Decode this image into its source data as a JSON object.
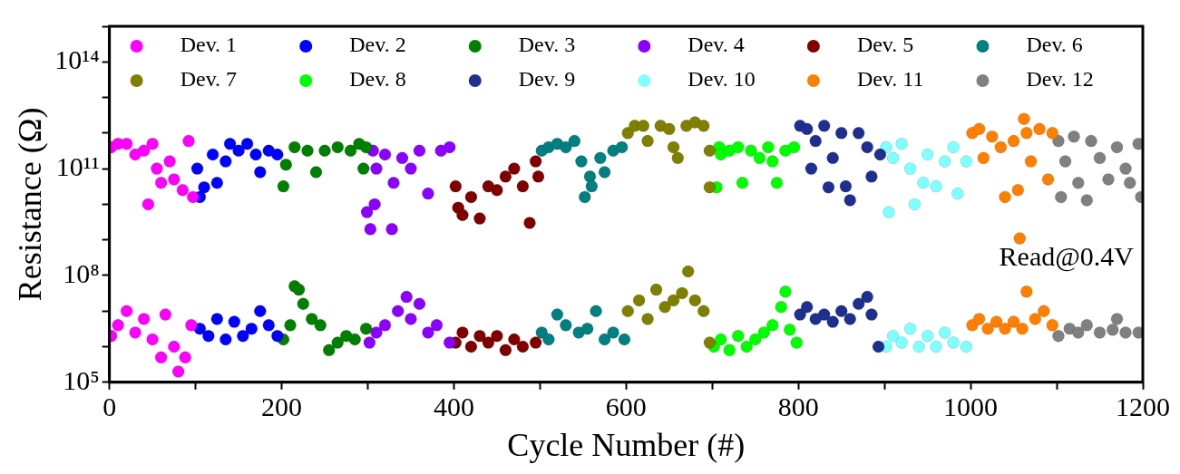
{
  "chart_data": {
    "type": "scatter",
    "xlabel": "Cycle Number (#)",
    "ylabel": "Resistance (Ω)",
    "annotations": [
      "Read@0.4V"
    ],
    "log": "y",
    "grid": false,
    "legend": "top",
    "marker": "circle",
    "xlim": [
      0,
      1200
    ],
    "xticks": [
      0,
      {
        "value": 100,
        "label": null
      },
      200,
      {
        "value": 300,
        "label": null
      },
      400,
      {
        "value": 500,
        "label": null
      },
      600,
      {
        "value": 700,
        "label": null
      },
      800,
      {
        "value": 900,
        "label": null
      },
      1000,
      {
        "value": 1100,
        "label": null
      },
      1200
    ],
    "ylim": [
      100000,
      1000000000000000
    ],
    "yticks": [
      {
        "value": 100000,
        "label": "10⁵"
      },
      {
        "value": 1000000,
        "label": null
      },
      {
        "value": 10000000,
        "label": null
      },
      {
        "value": 100000000,
        "label": "10⁸"
      },
      {
        "value": 1000000000,
        "label": null
      },
      {
        "value": 10000000000,
        "label": null
      },
      {
        "value": 100000000000,
        "label": "10¹¹"
      },
      {
        "value": 1000000000000,
        "label": null
      },
      {
        "value": 10000000000000,
        "label": null
      },
      {
        "value": 100000000000000,
        "label": "10¹⁴"
      },
      {
        "value": 1000000000000000,
        "label": null
      }
    ],
    "series": [
      {
        "name": "Dev. 1",
        "color": "#ff00ff",
        "x": [
          2,
          10,
          20,
          30,
          40,
          45,
          50,
          55,
          60,
          70,
          75,
          85,
          92,
          97,
          2,
          10,
          20,
          30,
          40,
          50,
          60,
          65,
          75,
          80,
          88,
          95
        ],
        "values": [
          400000000000.0,
          500000000000.0,
          500000000000.0,
          250000000000.0,
          320000000000.0,
          10000000000.0,
          500000000000.0,
          100000000000.0,
          40000000000.0,
          160000000000.0,
          50000000000.0,
          25000000000.0,
          600000000000.0,
          16000000000.0,
          2000000.0,
          4000000.0,
          10000000.0,
          2500000.0,
          6000000.0,
          1600000.0,
          500000.0,
          8000000.0,
          1000000.0,
          200000.0,
          500000.0,
          4000000.0
        ]
      },
      {
        "name": "Dev. 2",
        "color": "#0000ff",
        "x": [
          102,
          105,
          110,
          120,
          125,
          135,
          140,
          150,
          160,
          170,
          175,
          185,
          195,
          105,
          115,
          125,
          135,
          145,
          155,
          165,
          175,
          185,
          195
        ],
        "values": [
          100000000000.0,
          16000000000.0,
          30000000000.0,
          250000000000.0,
          40000000000.0,
          160000000000.0,
          500000000000.0,
          320000000000.0,
          500000000000.0,
          250000000000.0,
          80000000000.0,
          320000000000.0,
          250000000000.0,
          3200000.0,
          2000000.0,
          6000000.0,
          1600000.0,
          5000000.0,
          2000000.0,
          3200000.0,
          10000000.0,
          4000000.0,
          2000000.0
        ]
      },
      {
        "name": "Dev. 3",
        "color": "#008000",
        "x": [
          202,
          205,
          215,
          230,
          240,
          250,
          265,
          280,
          290,
          295,
          298,
          202,
          210,
          215,
          220,
          225,
          235,
          245,
          255,
          265,
          275,
          285,
          298
        ],
        "values": [
          32000000000.0,
          130000000000.0,
          400000000000.0,
          320000000000.0,
          80000000000.0,
          320000000000.0,
          400000000000.0,
          320000000000.0,
          500000000000.0,
          100000000000.0,
          400000000000.0,
          1600000.0,
          4000000.0,
          50000000.0,
          40000000.0,
          16000000.0,
          6000000.0,
          4000000.0,
          800000.0,
          1300000.0,
          2000000.0,
          1600000.0,
          3200000.0
        ]
      },
      {
        "name": "Dev. 4",
        "color": "#8b00ff",
        "x": [
          306,
          303,
          299,
          308,
          310,
          320,
          328,
          330,
          340,
          350,
          360,
          370,
          385,
          395,
          302,
          310,
          320,
          335,
          345,
          350,
          360,
          370,
          380,
          395
        ],
        "values": [
          320000000000.0,
          2000000000.0,
          6000000000.0,
          10000000000.0,
          100000000000.0,
          250000000000.0,
          2000000000.0,
          40000000000.0,
          200000000000.0,
          100000000000.0,
          320000000000.0,
          20000000000.0,
          320000000000.0,
          400000000000.0,
          1300000.0,
          2500000.0,
          4000000.0,
          10000000.0,
          25000000.0,
          6000000.0,
          16000000.0,
          2500000.0,
          4000000.0,
          1300000.0
        ]
      },
      {
        "name": "Dev. 5",
        "color": "#800000",
        "x": [
          402,
          405,
          410,
          420,
          430,
          440,
          450,
          460,
          470,
          480,
          488,
          495,
          498,
          402,
          410,
          420,
          430,
          440,
          450,
          460,
          470,
          480,
          495
        ],
        "values": [
          32000000000.0,
          8000000000.0,
          5000000000.0,
          16000000000.0,
          4000000000.0,
          32000000000.0,
          25000000000.0,
          60000000000.0,
          100000000000.0,
          32000000000.0,
          3000000000.0,
          160000000000.0,
          60000000000.0,
          1300000.0,
          2500000.0,
          1000000.0,
          2000000.0,
          1300000.0,
          2000000.0,
          800000.0,
          1600000.0,
          1000000.0,
          1300000.0
        ]
      },
      {
        "name": "Dev. 6",
        "color": "#008080",
        "x": [
          502,
          510,
          520,
          530,
          540,
          548,
          552,
          558,
          560,
          570,
          575,
          585,
          595,
          502,
          510,
          520,
          530,
          545,
          555,
          565,
          575,
          585,
          598
        ],
        "values": [
          320000000000.0,
          400000000000.0,
          500000000000.0,
          400000000000.0,
          600000000000.0,
          160000000000.0,
          16000000000.0,
          60000000000.0,
          32000000000.0,
          200000000000.0,
          80000000000.0,
          320000000000.0,
          400000000000.0,
          2500000.0,
          1600000.0,
          8000000.0,
          4000000.0,
          2500000.0,
          3200000.0,
          10000000.0,
          1600000.0,
          2500000.0,
          1600000.0
        ]
      },
      {
        "name": "Dev. 7",
        "color": "#808000",
        "x": [
          602,
          610,
          620,
          625,
          640,
          650,
          655,
          660,
          670,
          680,
          690,
          697,
          697,
          602,
          615,
          625,
          635,
          645,
          655,
          665,
          672,
          680,
          690,
          697
        ],
        "values": [
          1000000000000.0,
          1600000000000.0,
          1600000000000.0,
          600000000000.0,
          1600000000000.0,
          1300000000000.0,
          400000000000.0,
          200000000000.0,
          1600000000000.0,
          2000000000000.0,
          1600000000000.0,
          320000000000.0,
          30000000000.0,
          10000000.0,
          20000000.0,
          6000000.0,
          40000000.0,
          13000000.0,
          20000000.0,
          32000000.0,
          130000000.0,
          20000000.0,
          10000000.0,
          1300000.0
        ]
      },
      {
        "name": "Dev. 8",
        "color": "#00ff00",
        "x": [
          708,
          705,
          710,
          720,
          730,
          735,
          745,
          755,
          765,
          770,
          775,
          785,
          795,
          702,
          710,
          720,
          730,
          740,
          750,
          760,
          770,
          780,
          785,
          790,
          798
        ],
        "values": [
          400000000000.0,
          30000000000.0,
          250000000000.0,
          320000000000.0,
          400000000000.0,
          40000000000.0,
          320000000000.0,
          200000000000.0,
          400000000000.0,
          160000000000.0,
          40000000000.0,
          320000000000.0,
          400000000000.0,
          1000000.0,
          1600000.0,
          800000.0,
          2000000.0,
          1000000.0,
          1600000.0,
          2500000.0,
          4000000.0,
          13000000.0,
          35000000.0,
          3000000.0,
          1300000.0
        ]
      },
      {
        "name": "Dev. 9",
        "color": "#1f2f8f",
        "x": [
          802,
          810,
          815,
          820,
          830,
          835,
          840,
          850,
          855,
          860,
          870,
          880,
          885,
          895,
          802,
          810,
          820,
          830,
          840,
          850,
          860,
          870,
          880,
          885,
          893
        ],
        "values": [
          1600000000000.0,
          1300000000000.0,
          100000000000.0,
          600000000000.0,
          1600000000000.0,
          30000000000.0,
          200000000000.0,
          1000000000000.0,
          32000000000.0,
          13000000000.0,
          1000000000000.0,
          400000000000.0,
          60000000000.0,
          250000000000.0,
          8000000.0,
          13000000.0,
          6000000.0,
          8000000.0,
          5000000.0,
          10000000.0,
          6000000.0,
          16000000.0,
          25000000.0,
          8000000.0,
          1000000.0
        ]
      },
      {
        "name": "Dev. 10",
        "color": "#80ffff",
        "x": [
          902,
          905,
          910,
          920,
          930,
          935,
          945,
          950,
          960,
          970,
          980,
          985,
          995,
          902,
          910,
          920,
          930,
          940,
          950,
          960,
          970,
          980,
          995
        ],
        "values": [
          400000000000.0,
          6000000000.0,
          200000000000.0,
          500000000000.0,
          100000000000.0,
          10000000000.0,
          40000000000.0,
          250000000000.0,
          32000000000.0,
          160000000000.0,
          400000000000.0,
          20000000000.0,
          160000000000.0,
          1000000.0,
          2000000.0,
          1300000.0,
          3200000.0,
          1000000.0,
          2000000.0,
          1000000.0,
          2500000.0,
          1300000.0,
          1000000.0
        ]
      },
      {
        "name": "Dev. 11",
        "color": "#ff8000",
        "x": [
          1002,
          1010,
          1015,
          1025,
          1035,
          1040,
          1050,
          1055,
          1057,
          1062,
          1065,
          1070,
          1080,
          1090,
          1095,
          1002,
          1010,
          1020,
          1030,
          1040,
          1050,
          1060,
          1065,
          1075,
          1085,
          1095
        ],
        "values": [
          1000000000000.0,
          1300000000000.0,
          200000000000.0,
          800000000000.0,
          400000000000.0,
          16000000000.0,
          600000000000.0,
          25000000000.0,
          1100000000.0,
          2500000000000.0,
          1000000000000.0,
          160000000000.0,
          1300000000000.0,
          50000000000.0,
          1000000000000.0,
          4000000.0,
          6000000.0,
          3200000.0,
          5000000.0,
          3200000.0,
          5000000.0,
          3200000.0,
          35000000.0,
          6000000.0,
          10000000.0,
          4000000.0
        ]
      },
      {
        "name": "Dev. 12",
        "color": "#808080",
        "x": [
          1102,
          1105,
          1110,
          1120,
          1125,
          1135,
          1140,
          1150,
          1160,
          1170,
          1180,
          1185,
          1195,
          1198,
          1102,
          1115,
          1125,
          1135,
          1150,
          1165,
          1170,
          1180,
          1195
        ],
        "values": [
          600000000000.0,
          16000000000.0,
          160000000000.0,
          800000000000.0,
          40000000000.0,
          13000000000.0,
          600000000000.0,
          200000000000.0,
          50000000000.0,
          400000000000.0,
          100000000000.0,
          40000000000.0,
          500000000000.0,
          16000000000.0,
          2000000.0,
          3200000.0,
          2500000.0,
          4000000.0,
          2500000.0,
          3000000.0,
          6000000.0,
          2500000.0,
          2500000.0
        ]
      }
    ]
  }
}
